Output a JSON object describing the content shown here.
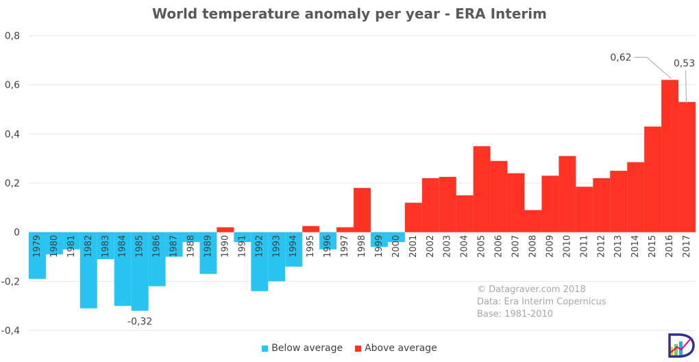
{
  "chart_data": {
    "type": "bar",
    "title": "World temperature anomaly per year - ERA Interim",
    "categories": [
      "1979",
      "1980",
      "1981",
      "1982",
      "1983",
      "1984",
      "1985",
      "1986",
      "1987",
      "1988",
      "1989",
      "1990",
      "1991",
      "1992",
      "1993",
      "1994",
      "1995",
      "1996",
      "1997",
      "1998",
      "1999",
      "2000",
      "2001",
      "2002",
      "2003",
      "2004",
      "2005",
      "2006",
      "2007",
      "2008",
      "2009",
      "2010",
      "2011",
      "2012",
      "2013",
      "2014",
      "2015",
      "2016",
      "2017"
    ],
    "series": [
      {
        "name": "Below average",
        "color": "#29c4f1",
        "values": [
          -0.19,
          -0.09,
          -0.07,
          -0.31,
          -0.11,
          -0.3,
          -0.32,
          -0.22,
          -0.1,
          -0.04,
          -0.17,
          null,
          -0.04,
          -0.24,
          -0.2,
          -0.14,
          null,
          -0.07,
          null,
          null,
          -0.06,
          -0.04,
          null,
          null,
          null,
          null,
          null,
          null,
          null,
          null,
          null,
          null,
          null,
          null,
          null,
          null,
          null,
          null,
          null
        ]
      },
      {
        "name": "Above average",
        "color": "#ff3323",
        "values": [
          null,
          null,
          null,
          null,
          null,
          null,
          null,
          null,
          null,
          null,
          null,
          0.02,
          null,
          null,
          null,
          null,
          0.025,
          null,
          0.02,
          0.18,
          null,
          null,
          0.12,
          0.22,
          0.225,
          0.15,
          0.35,
          0.29,
          0.24,
          0.09,
          0.23,
          0.31,
          0.185,
          0.22,
          0.25,
          0.285,
          0.43,
          0.62,
          0.53
        ]
      }
    ],
    "ylim": [
      -0.4,
      0.8
    ],
    "yticks": [
      "0,8",
      "0,6",
      "0,4",
      "0,2",
      "0",
      "-0,2",
      "-0,4"
    ],
    "grid": true,
    "legend": "bottom",
    "annotations": [
      {
        "label": "-0,32",
        "category": "1985",
        "value": -0.32
      },
      {
        "label": "0,62",
        "category": "2016",
        "value": 0.62
      },
      {
        "label": "0,53",
        "category": "2017",
        "value": 0.53
      }
    ]
  },
  "credits": [
    "© Datagraver.com 2018",
    "Data: Era Interim Copernicus",
    "Base: 1981-2010"
  ],
  "logo_icon": "datagraver-logo-icon"
}
